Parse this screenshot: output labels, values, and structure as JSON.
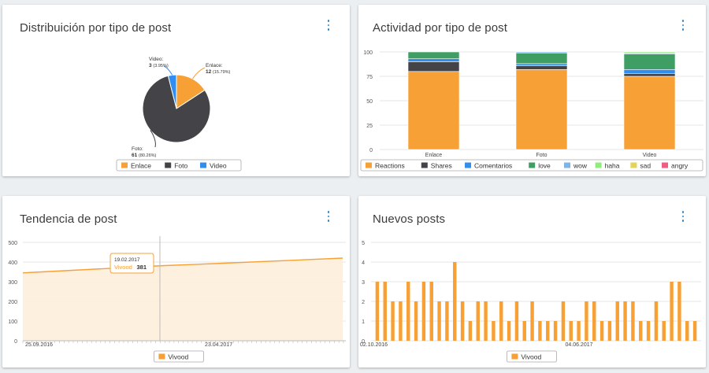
{
  "cards": [
    {
      "title": "Distribuición por tipo de post"
    },
    {
      "title": "Actividad por tipo de post"
    },
    {
      "title": "Tendencia de post"
    },
    {
      "title": "Nuevos posts"
    }
  ],
  "chart_data": [
    {
      "type": "pie",
      "title": "Distribuición por tipo de post",
      "slices": [
        {
          "name": "Enlace",
          "value": 12,
          "pct": "15.79%",
          "color": "#f7a035"
        },
        {
          "name": "Foto",
          "value": 61,
          "pct": "80.26%",
          "color": "#434348"
        },
        {
          "name": "Video",
          "value": 3,
          "pct": "3.95%",
          "color": "#2f8ef0"
        }
      ],
      "data_labels": [
        {
          "name": "Video:",
          "value": "3",
          "pct": "(3.95%)"
        },
        {
          "name": "Enlace:",
          "value": "12",
          "pct": "(15.79%)"
        },
        {
          "name": "Foto:",
          "value": "61",
          "pct": "(80.26%)"
        }
      ],
      "legend": [
        "Enlace",
        "Foto",
        "Video"
      ],
      "legend_position": "bottom"
    },
    {
      "type": "bar",
      "stacked": true,
      "title": "Actividad por tipo de post",
      "categories": [
        "Enlace",
        "Foto",
        "Video"
      ],
      "ylim": [
        0,
        100
      ],
      "yticks": [
        "0",
        "25",
        "50",
        "75",
        "100"
      ],
      "series": [
        {
          "name": "Reactions",
          "color": "#f7a035",
          "values": [
            80,
            82,
            75
          ]
        },
        {
          "name": "Shares",
          "color": "#434348",
          "values": [
            10,
            4,
            3
          ]
        },
        {
          "name": "Comentarios",
          "color": "#2f8ef0",
          "values": [
            3,
            2,
            4
          ]
        },
        {
          "name": "love",
          "color": "#3e9e63",
          "values": [
            7,
            11,
            16
          ]
        },
        {
          "name": "wow",
          "color": "#7cb5ec",
          "values": [
            0,
            1,
            1
          ]
        },
        {
          "name": "haha",
          "color": "#90ed7d",
          "values": [
            0,
            0,
            1
          ]
        },
        {
          "name": "sad",
          "color": "#e4d354",
          "values": [
            0,
            0,
            0
          ]
        },
        {
          "name": "angry",
          "color": "#f15c80",
          "values": [
            0,
            0,
            0
          ]
        }
      ],
      "legend_position": "bottom"
    },
    {
      "type": "area",
      "title": "Tendencia de post",
      "series": [
        {
          "name": "Vivood",
          "color": "#f7a035"
        }
      ],
      "x": [
        "25.09.2016",
        "19.02.2017",
        "23.04.2017",
        "2017-09-03"
      ],
      "y": [
        345,
        381,
        393,
        420
      ],
      "ylim": [
        0,
        500
      ],
      "yticks": [
        "0",
        "100",
        "200",
        "300",
        "400",
        "500"
      ],
      "xtick_labels": [
        "25.09.2016",
        "23.04.2017"
      ],
      "tooltip": {
        "date": "19.02.2017",
        "series": "Vivood",
        "value": "381"
      },
      "legend_position": "bottom"
    },
    {
      "type": "bar",
      "title": "Nuevos posts",
      "series": [
        {
          "name": "Vivood",
          "color": "#f7a035",
          "values": [
            3,
            3,
            2,
            2,
            3,
            2,
            3,
            3,
            2,
            2,
            4,
            2,
            1,
            2,
            2,
            1,
            2,
            1,
            2,
            1,
            2,
            1,
            1,
            1,
            2,
            1,
            1,
            2,
            2,
            1,
            1,
            2,
            2,
            2,
            1,
            1,
            2,
            1,
            3,
            3,
            1,
            1
          ]
        }
      ],
      "ylim": [
        0,
        5
      ],
      "yticks": [
        "0",
        "1",
        "2",
        "3",
        "4",
        "5"
      ],
      "xtick_labels": [
        "02.10.2016",
        "04.06.2017"
      ],
      "legend_position": "bottom"
    }
  ]
}
